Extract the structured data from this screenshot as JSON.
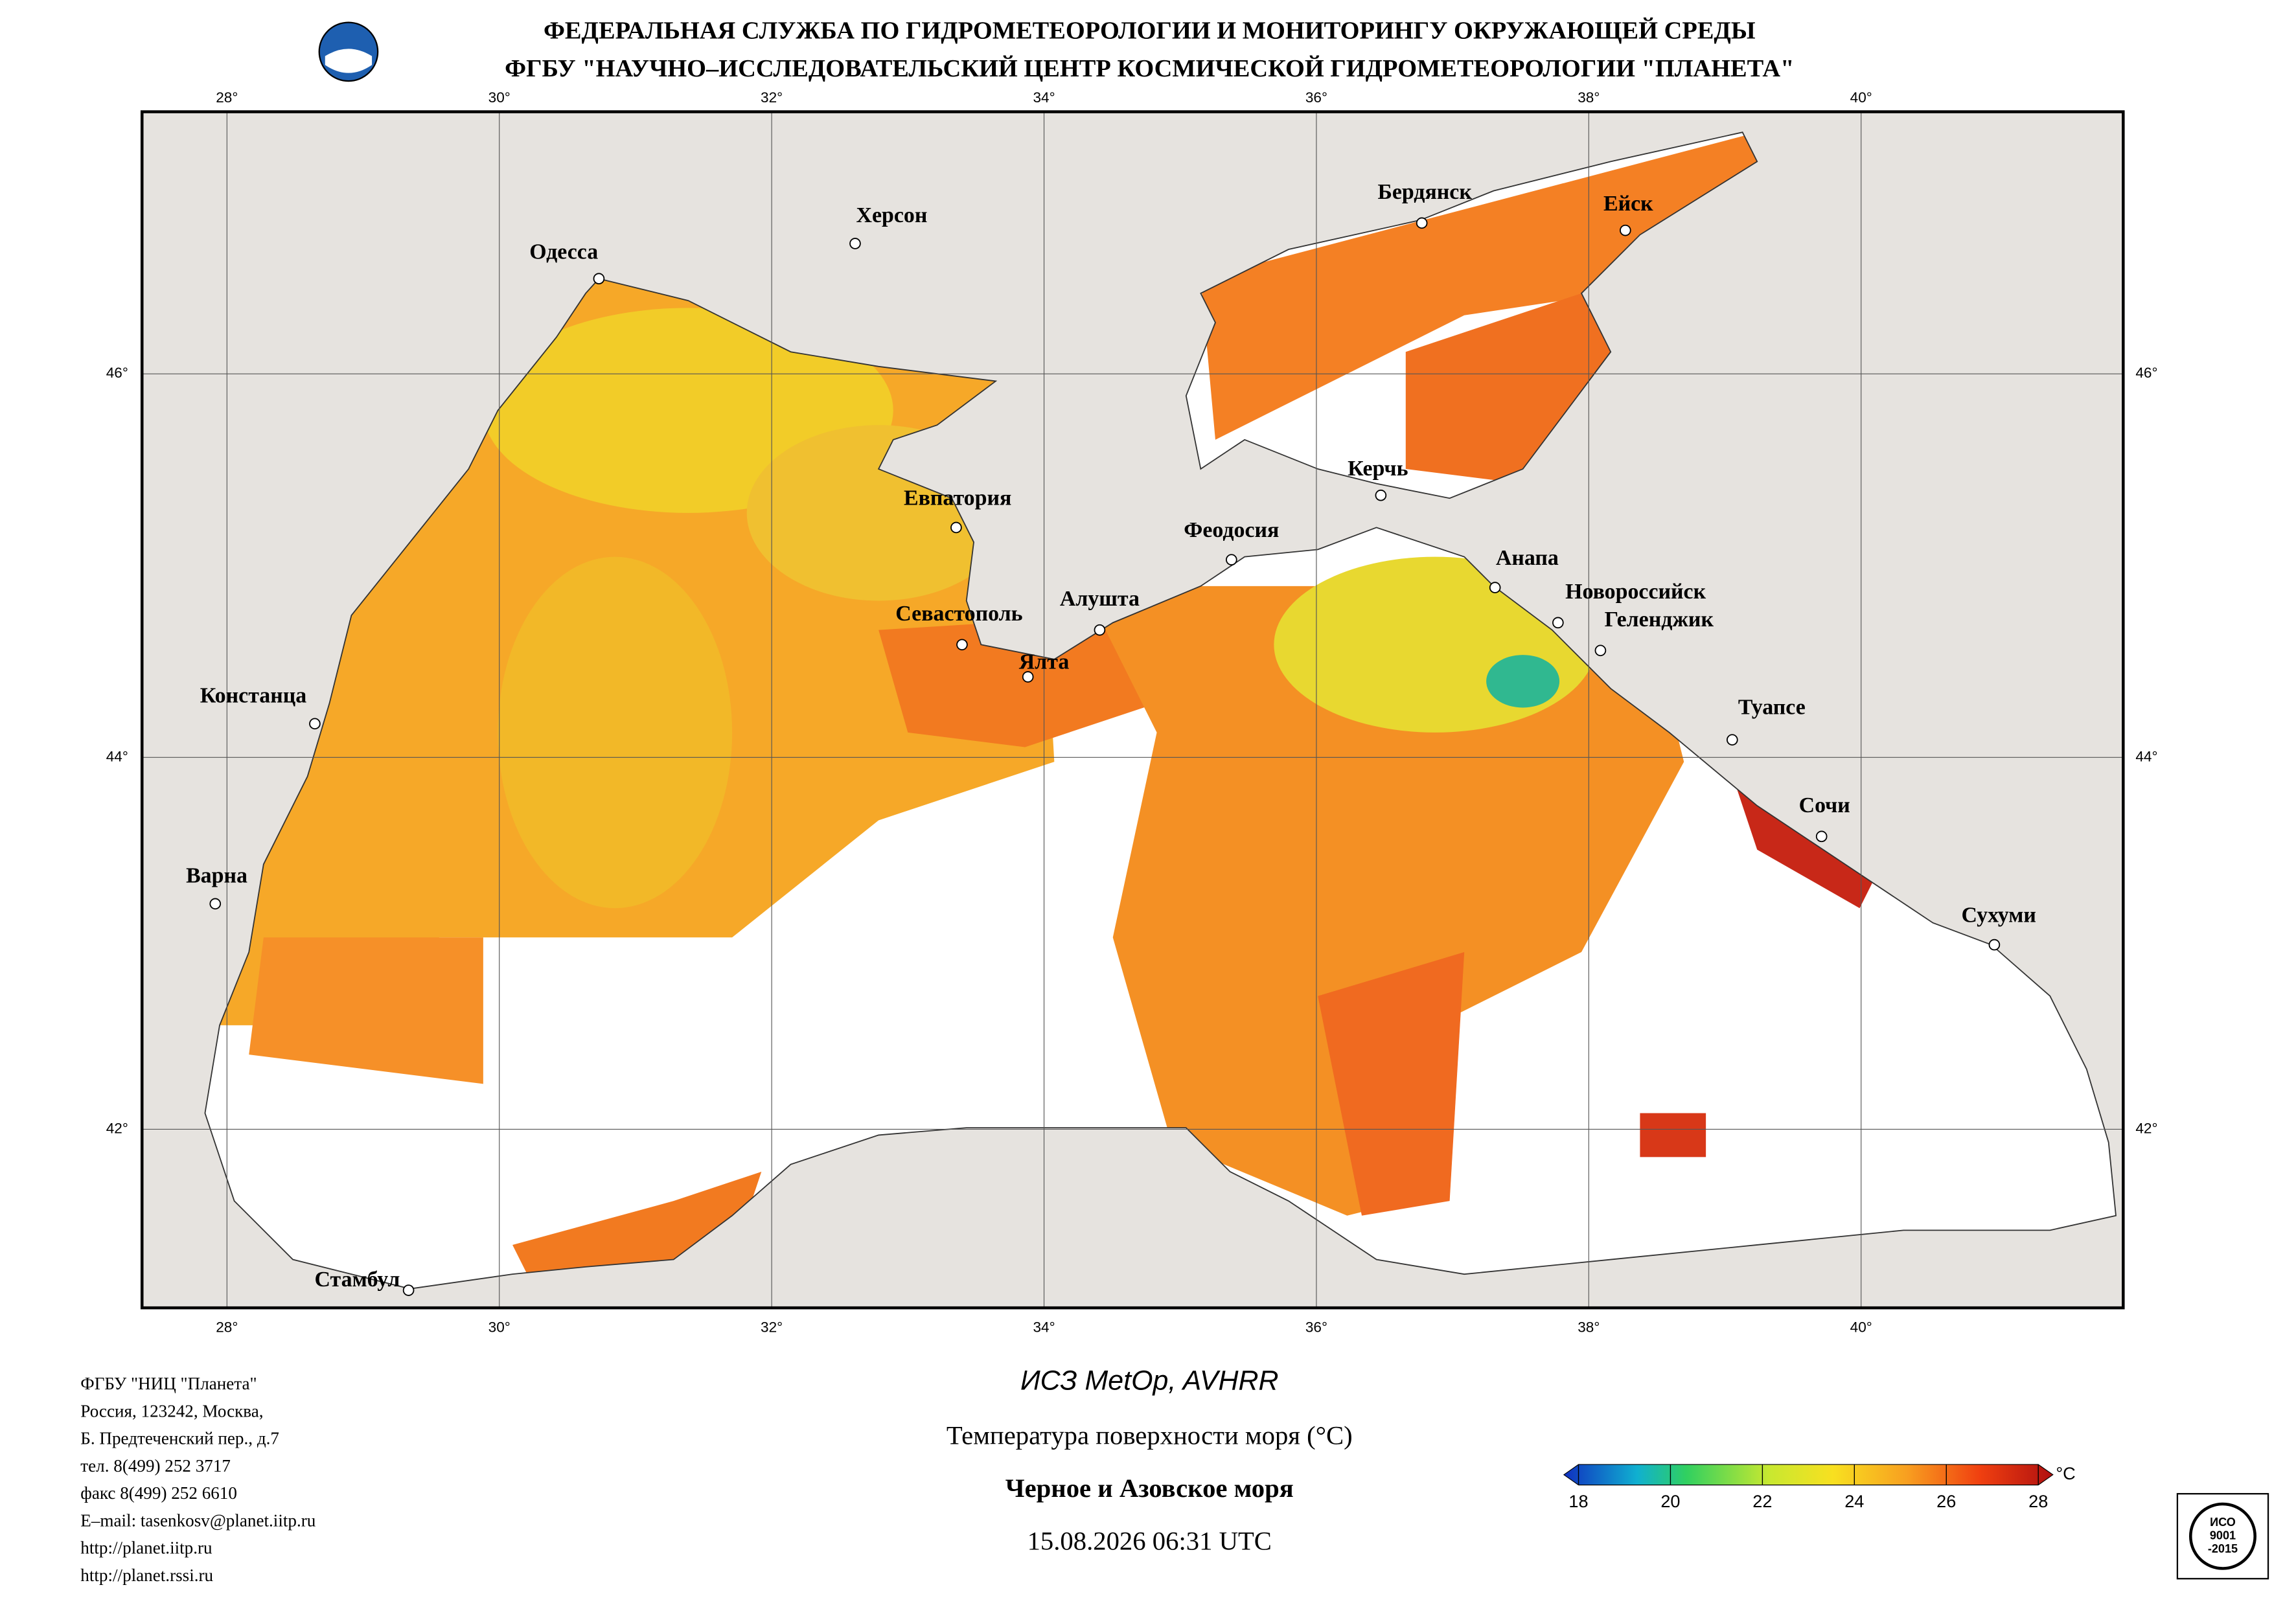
{
  "header": {
    "line1": "ФЕДЕРАЛЬНАЯ СЛУЖБА ПО ГИДРОМЕТЕОРОЛОГИИ И МОНИТОРИНГУ ОКРУЖАЮЩЕЙ СРЕДЫ",
    "line2": "ФГБУ \"НАУЧНО–ИССЛЕДОВАТЕЛЬСКИЙ ЦЕНТР КОСМИЧЕСКОЙ ГИДРОМЕТЕОРОЛОГИИ \"ПЛАНЕТА\""
  },
  "map": {
    "lon_labels": [
      "28°",
      "30°",
      "32°",
      "34°",
      "36°",
      "38°",
      "40°"
    ],
    "lat_labels": [
      "46°",
      "44°",
      "42°"
    ],
    "cities": [
      "Одесса",
      "Херсон",
      "Бердянск",
      "Ейск",
      "Евпатория",
      "Керчь",
      "Феодосия",
      "Анапа",
      "Новороссийск",
      "Геленджик",
      "Севастополь",
      "Алушта",
      "Ялта",
      "Констанца",
      "Туапсе",
      "Сочи",
      "Варна",
      "Сухуми",
      "Стамбул"
    ]
  },
  "footer": {
    "address": [
      "ФГБУ \"НИЦ \"Планета\"",
      "Россия, 123242, Москва,",
      "Б. Предтеченский пер., д.7",
      "тел. 8(499) 252 3717",
      "факс 8(499) 252 6610",
      "E–mail: tasenkosv@planet.iitp.ru",
      "http://planet.iitp.ru",
      "http://planet.rssi.ru"
    ],
    "satellite": "ИСЗ MetOp, AVHRR",
    "product": "Температура поверхности моря (°C)",
    "region": "Черное и Азовское моря",
    "datetime": "15.08.2026 06:31 UTC"
  },
  "colorbar": {
    "ticks": [
      18,
      20,
      22,
      24,
      26,
      28
    ],
    "unit": "°C"
  },
  "iso_logo": [
    "ИСО",
    "9001",
    "-2015"
  ]
}
